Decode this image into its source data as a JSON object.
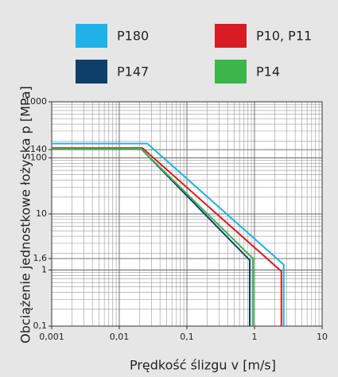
{
  "chart_data": {
    "type": "line",
    "xlabel": "Prędkość ślizgu v [m/s]",
    "ylabel": "Obciążenie jednostkowe łożyska p [MPa]",
    "log_x": true,
    "log_y": true,
    "grid": true,
    "xlim": [
      0.001,
      10
    ],
    "ylim": [
      0.1,
      1000
    ],
    "xticks": [
      {
        "value": 0.001,
        "label": "0,001"
      },
      {
        "value": 0.01,
        "label": "0,01"
      },
      {
        "value": 0.1,
        "label": "0,1"
      },
      1,
      10
    ],
    "yticks": [
      {
        "value": 0.1,
        "label": "0,1"
      },
      1,
      {
        "value": 1.6,
        "label": "1,6"
      },
      10,
      100,
      140,
      1000
    ],
    "series": [
      {
        "name": "P180",
        "color": "#1fb2e8",
        "x": [
          0.001,
          0.026,
          2.7,
          2.7
        ],
        "values": [
          180,
          180,
          1.25,
          0.1
        ]
      },
      {
        "name": "P10, P11",
        "color": "#d91c24",
        "x": [
          0.001,
          0.022,
          2.5,
          2.5
        ],
        "values": [
          150,
          150,
          0.95,
          0.1
        ]
      },
      {
        "name": "P147",
        "color": "#0d3f6b",
        "x": [
          0.001,
          0.021,
          0.85,
          0.85
        ],
        "values": [
          145,
          145,
          1.5,
          0.1
        ]
      },
      {
        "name": "P14",
        "color": "#3db54a",
        "x": [
          0.001,
          0.021,
          0.95,
          0.95
        ],
        "values": [
          145,
          145,
          1.6,
          0.1
        ]
      }
    ]
  }
}
